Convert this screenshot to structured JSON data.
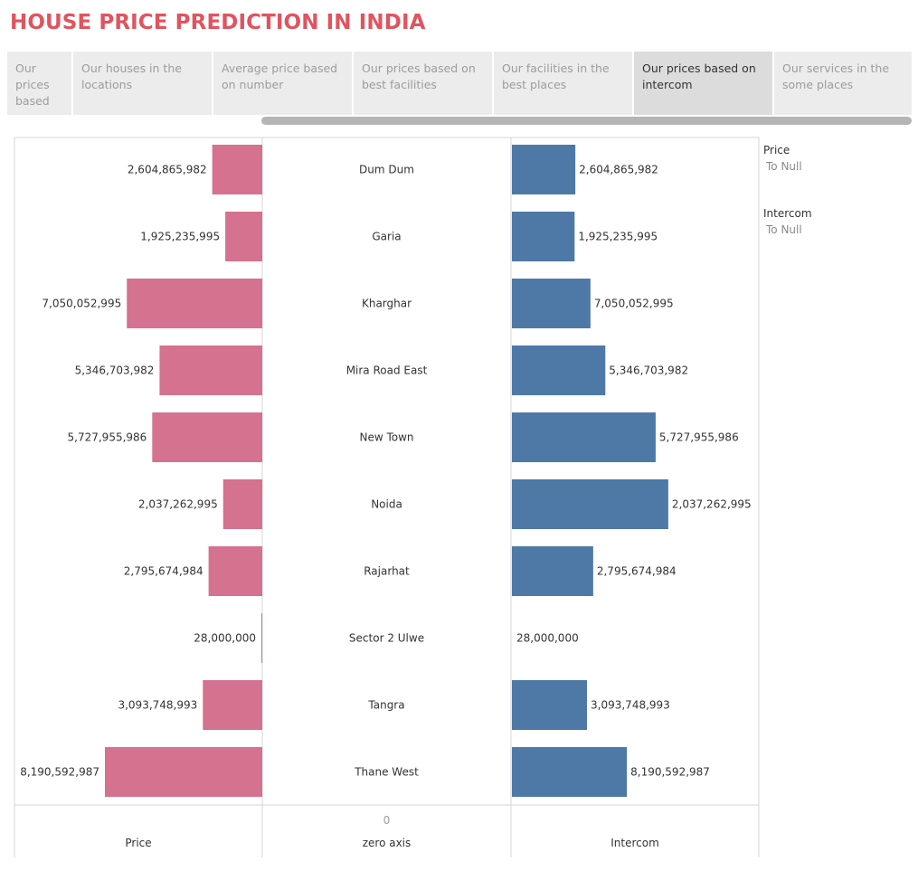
{
  "page_title": "HOUSE PRICE PREDICTION IN INDIA",
  "tabs": [
    {
      "label": "Our prices based on ..",
      "active": false
    },
    {
      "label": "Our houses in the locations",
      "active": false
    },
    {
      "label": "Average price based on number",
      "active": false
    },
    {
      "label": "Our prices based on best facilities",
      "active": false
    },
    {
      "label": "Our facilities in the best places",
      "active": false
    },
    {
      "label": "Our prices based on intercom",
      "active": true
    },
    {
      "label": "Our services in the some places",
      "active": false
    }
  ],
  "legend": [
    {
      "title": "Price",
      "value": "To Null"
    },
    {
      "title": "Intercom",
      "value": "To Null"
    }
  ],
  "colors": {
    "price": "#d4728f",
    "intercom": "#4e79a7",
    "title": "#e0545f"
  },
  "chart_data": {
    "type": "bar",
    "categories": [
      "Dum Dum",
      "Garia",
      "Kharghar",
      "Mira Road East",
      "New Town",
      "Noida",
      "Rajarhat",
      "Sector 2 Ulwe",
      "Tangra",
      "Thane West"
    ],
    "series": [
      {
        "name": "Price",
        "values": [
          2604865982,
          1925235995,
          7050052995,
          5346703982,
          5727955986,
          2037262995,
          2795674984,
          28000000,
          3093748993,
          8190592987
        ]
      },
      {
        "name": "Intercom",
        "values": [
          2604865982,
          1925235995,
          7050052995,
          5346703982,
          5727955986,
          2037262995,
          2795674984,
          28000000,
          3093748993,
          8190592987
        ]
      }
    ],
    "intercom_bar_levels": [
      0.256,
      0.253,
      0.317,
      0.377,
      0.58,
      0.631,
      0.328,
      0.0,
      0.303,
      0.464
    ],
    "value_labels": [
      "2,604,865,982",
      "1,925,235,995",
      "7,050,052,995",
      "5,346,703,982",
      "5,727,955,986",
      "2,037,262,995",
      "2,795,674,984",
      "28,000,000",
      "3,093,748,993",
      "8,190,592,987"
    ],
    "axis_titles": {
      "left": "Price",
      "center": "zero axis",
      "right": "Intercom"
    },
    "center_tick": "0"
  }
}
